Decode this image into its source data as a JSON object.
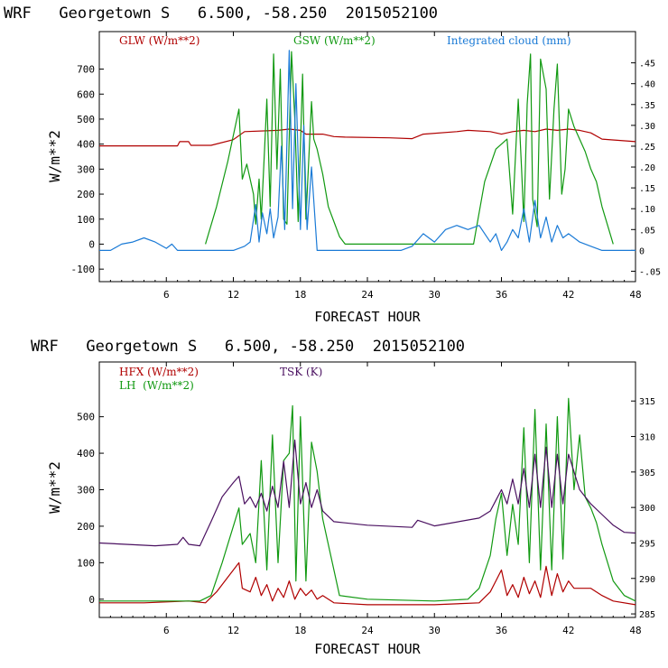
{
  "charts": [
    {
      "header": "WRF   Georgetown S   6.500, -58.250  2015052100",
      "legend": [
        {
          "label": "GLW (W/m**2)",
          "color": "#b00000"
        },
        {
          "label": "GSW (W/m**2)",
          "color": "#119911"
        },
        {
          "label": "Integrated cloud (mm)",
          "color": "#1a7ad6"
        }
      ],
      "ylabel": "W/m**2",
      "xlabel": "FORECAST HOUR",
      "x_ticks": [
        "6",
        "12",
        "18",
        "24",
        "30",
        "36",
        "42",
        "48"
      ],
      "y_ticks": [
        "-100",
        "0",
        "100",
        "200",
        "300",
        "400",
        "500",
        "600",
        "700"
      ],
      "y2_ticks": [
        "-.05",
        "0",
        ".05",
        ".10",
        ".15",
        ".20",
        ".25",
        ".30",
        ".35",
        ".40",
        ".45"
      ]
    },
    {
      "header": "WRF   Georgetown S   6.500, -58.250  2015052100",
      "legend": [
        {
          "label": "HFX (W/m**2)",
          "color": "#b00000"
        },
        {
          "label": "LH  (W/m**2)",
          "color": "#119911"
        },
        {
          "label": "TSK (K)",
          "color": "#4a1060"
        }
      ],
      "ylabel": "W/m**2",
      "xlabel": "FORECAST HOUR",
      "x_ticks": [
        "6",
        "12",
        "18",
        "24",
        "30",
        "36",
        "42",
        "48"
      ],
      "y_ticks": [
        "0",
        "100",
        "200",
        "300",
        "400",
        "500"
      ],
      "y2_ticks": [
        "285",
        "290",
        "295",
        "300",
        "305",
        "310",
        "315"
      ]
    }
  ],
  "chart_data": [
    {
      "type": "line",
      "title": "WRF   Georgetown S   6.500, -58.250  2015052100",
      "xlabel": "FORECAST HOUR",
      "ylabel": "W/m**2",
      "xlim": [
        0,
        48
      ],
      "ylim": [
        -150,
        850
      ],
      "y2lim": [
        -0.075,
        0.525
      ],
      "grid": false,
      "legend_position": "top",
      "series": [
        {
          "name": "GLW (W/m**2)",
          "axis": "left",
          "color": "#b00000",
          "x": [
            0,
            7,
            7.2,
            8,
            8.2,
            10,
            12,
            13,
            16,
            17,
            18,
            18.5,
            20,
            21,
            22,
            26,
            28,
            29,
            32,
            33,
            35,
            36,
            37,
            38,
            39,
            40,
            41,
            42,
            43,
            44,
            45,
            48
          ],
          "y": [
            393,
            393,
            410,
            410,
            395,
            395,
            418,
            450,
            455,
            460,
            455,
            440,
            440,
            430,
            428,
            425,
            422,
            440,
            450,
            455,
            450,
            440,
            450,
            455,
            450,
            460,
            455,
            460,
            455,
            445,
            420,
            410
          ]
        },
        {
          "name": "GSW (W/m**2)",
          "axis": "left",
          "color": "#119911",
          "x": [
            9.5,
            10.5,
            11.5,
            12.5,
            12.8,
            13.2,
            13.8,
            14.0,
            14.3,
            14.5,
            14.8,
            15.0,
            15.3,
            15.6,
            15.9,
            16.2,
            16.5,
            16.8,
            17.2,
            17.5,
            17.8,
            18.2,
            18.5,
            19.0,
            19.2,
            19.5,
            20.0,
            20.5,
            21.0,
            21.5,
            22.0,
            33.5,
            34.5,
            35.5,
            36.5,
            37.0,
            37.5,
            37.8,
            38.0,
            38.3,
            38.6,
            38.8,
            39.2,
            39.5,
            40.0,
            40.3,
            40.7,
            41.0,
            41.4,
            41.7,
            42.0,
            42.5,
            43.0,
            43.5,
            44.0,
            44.5,
            45.0,
            46.0
          ],
          "y": [
            0,
            150,
            330,
            540,
            260,
            320,
            200,
            80,
            260,
            100,
            380,
            580,
            150,
            760,
            300,
            700,
            100,
            80,
            770,
            500,
            90,
            680,
            100,
            570,
            420,
            380,
            280,
            150,
            90,
            30,
            0,
            0,
            250,
            380,
            420,
            120,
            580,
            300,
            90,
            560,
            760,
            180,
            70,
            740,
            620,
            180,
            540,
            720,
            200,
            300,
            540,
            470,
            420,
            370,
            300,
            250,
            150,
            0
          ]
        },
        {
          "name": "Integrated cloud (mm)",
          "axis": "right",
          "color": "#1a7ad6",
          "x": [
            0,
            1,
            2,
            3,
            4,
            5,
            6,
            6.5,
            7,
            8,
            9,
            10,
            11,
            12,
            13,
            13.5,
            14,
            14.3,
            14.6,
            15,
            15.3,
            15.6,
            16,
            16.3,
            16.6,
            17,
            17.3,
            17.6,
            18,
            18.3,
            18.6,
            19,
            19.5,
            20,
            27,
            28,
            29,
            30,
            31,
            32,
            33,
            34,
            35,
            35.5,
            36,
            36.5,
            37,
            37.5,
            38,
            38.5,
            39,
            39.5,
            40,
            40.5,
            41,
            41.5,
            42,
            43,
            44,
            45,
            48
          ],
          "y": [
            0,
            0,
            0.015,
            0.02,
            0.03,
            0.02,
            0.005,
            0.015,
            0.0,
            0,
            0,
            0,
            0,
            0,
            0.01,
            0.02,
            0.11,
            0.02,
            0.09,
            0.04,
            0.1,
            0.03,
            0.08,
            0.25,
            0.05,
            0.48,
            0.1,
            0.4,
            0.05,
            0.3,
            0.05,
            0.2,
            0.0,
            0,
            0,
            0.01,
            0.04,
            0.02,
            0.05,
            0.06,
            0.05,
            0.06,
            0.02,
            0.04,
            0.0,
            0.02,
            0.05,
            0.03,
            0.1,
            0.02,
            0.12,
            0.03,
            0.08,
            0.02,
            0.06,
            0.03,
            0.04,
            0.02,
            0.01,
            0.0,
            0
          ]
        }
      ],
      "x_ticks": [
        6,
        12,
        18,
        24,
        30,
        36,
        42,
        48
      ],
      "y_ticks": [
        -100,
        0,
        100,
        200,
        300,
        400,
        500,
        600,
        700
      ],
      "y2_ticks": [
        -0.05,
        0,
        0.05,
        0.1,
        0.15,
        0.2,
        0.25,
        0.3,
        0.35,
        0.4,
        0.45
      ]
    },
    {
      "type": "line",
      "title": "WRF   Georgetown S   6.500, -58.250  2015052100",
      "xlabel": "FORECAST HOUR",
      "ylabel": "W/m**2",
      "xlim": [
        0,
        48
      ],
      "ylim": [
        -50,
        650
      ],
      "y2lim": [
        284.5,
        320.5
      ],
      "grid": false,
      "legend_position": "top-left",
      "series": [
        {
          "name": "HFX (W/m**2)",
          "axis": "left",
          "color": "#b00000",
          "x": [
            0,
            4,
            8,
            9.5,
            10.5,
            11.5,
            12.5,
            12.8,
            13.5,
            14,
            14.5,
            15,
            15.5,
            16,
            16.5,
            17,
            17.5,
            18,
            18.5,
            19,
            19.5,
            20,
            21,
            24,
            30,
            34,
            35,
            35.5,
            36,
            36.5,
            37,
            37.5,
            38,
            38.5,
            39,
            39.5,
            40,
            40.5,
            41,
            41.5,
            42,
            42.5,
            43,
            44,
            45,
            46,
            48
          ],
          "y": [
            -10,
            -10,
            -5,
            -10,
            20,
            60,
            100,
            30,
            20,
            60,
            10,
            40,
            -5,
            30,
            5,
            50,
            0,
            30,
            10,
            25,
            0,
            10,
            -10,
            -15,
            -15,
            -10,
            20,
            50,
            80,
            10,
            40,
            5,
            60,
            15,
            50,
            5,
            90,
            10,
            70,
            20,
            50,
            30,
            30,
            30,
            10,
            -5,
            -15
          ]
        },
        {
          "name": "LH  (W/m**2)",
          "axis": "left",
          "color": "#119911",
          "x": [
            0,
            5,
            8,
            9,
            10,
            11,
            12,
            12.5,
            12.8,
            13.5,
            14,
            14.5,
            15,
            15.5,
            16,
            16.5,
            17,
            17.3,
            17.6,
            18,
            18.5,
            19,
            19.5,
            20,
            20.5,
            21,
            21.5,
            24,
            30,
            33,
            34,
            35,
            35.5,
            36,
            36.5,
            37,
            37.5,
            38,
            38.5,
            39,
            39.5,
            40,
            40.5,
            41,
            41.5,
            42,
            42.5,
            43,
            43.5,
            44,
            44.5,
            45,
            46,
            47,
            48
          ],
          "y": [
            -5,
            -5,
            -5,
            -5,
            10,
            100,
            200,
            250,
            150,
            180,
            100,
            380,
            80,
            450,
            100,
            380,
            400,
            530,
            50,
            500,
            50,
            430,
            350,
            220,
            150,
            80,
            10,
            0,
            -5,
            0,
            30,
            120,
            220,
            290,
            120,
            260,
            150,
            470,
            100,
            520,
            80,
            480,
            80,
            500,
            110,
            550,
            300,
            450,
            280,
            250,
            210,
            150,
            50,
            10,
            -5
          ]
        },
        {
          "name": "TSK (K)",
          "axis": "right",
          "color": "#4a1060",
          "x": [
            0,
            5,
            7,
            7.5,
            8,
            9,
            10,
            11,
            12,
            12.5,
            13,
            13.5,
            14,
            14.5,
            15,
            15.5,
            16,
            16.5,
            17,
            17.5,
            18,
            18.5,
            19,
            19.5,
            20,
            21,
            24,
            28,
            28.5,
            30,
            34,
            35,
            35.5,
            36,
            36.5,
            37,
            37.5,
            38,
            38.5,
            39,
            39.5,
            40,
            40.5,
            41,
            41.5,
            42,
            43,
            44,
            45,
            46,
            47,
            48
          ],
          "y": [
            295.0,
            294.6,
            294.8,
            295.8,
            294.8,
            294.6,
            298.0,
            301.5,
            303.5,
            304.4,
            300.5,
            301.5,
            300.0,
            302.0,
            299.5,
            303.0,
            300.0,
            306.5,
            300.0,
            309.5,
            300.5,
            303.5,
            300.0,
            302.5,
            299.5,
            298.0,
            297.5,
            297.2,
            298.2,
            297.4,
            298.5,
            299.5,
            301.0,
            302.5,
            300.5,
            304.0,
            300.5,
            305.5,
            300.0,
            307.5,
            300.0,
            308.5,
            300.0,
            307.5,
            300.5,
            307.5,
            302.5,
            300.5,
            299.0,
            297.5,
            296.5,
            296.4
          ]
        }
      ],
      "x_ticks": [
        6,
        12,
        18,
        24,
        30,
        36,
        42,
        48
      ],
      "y_ticks": [
        0,
        100,
        200,
        300,
        400,
        500
      ],
      "y2_ticks": [
        285,
        290,
        295,
        300,
        305,
        310,
        315
      ]
    }
  ]
}
